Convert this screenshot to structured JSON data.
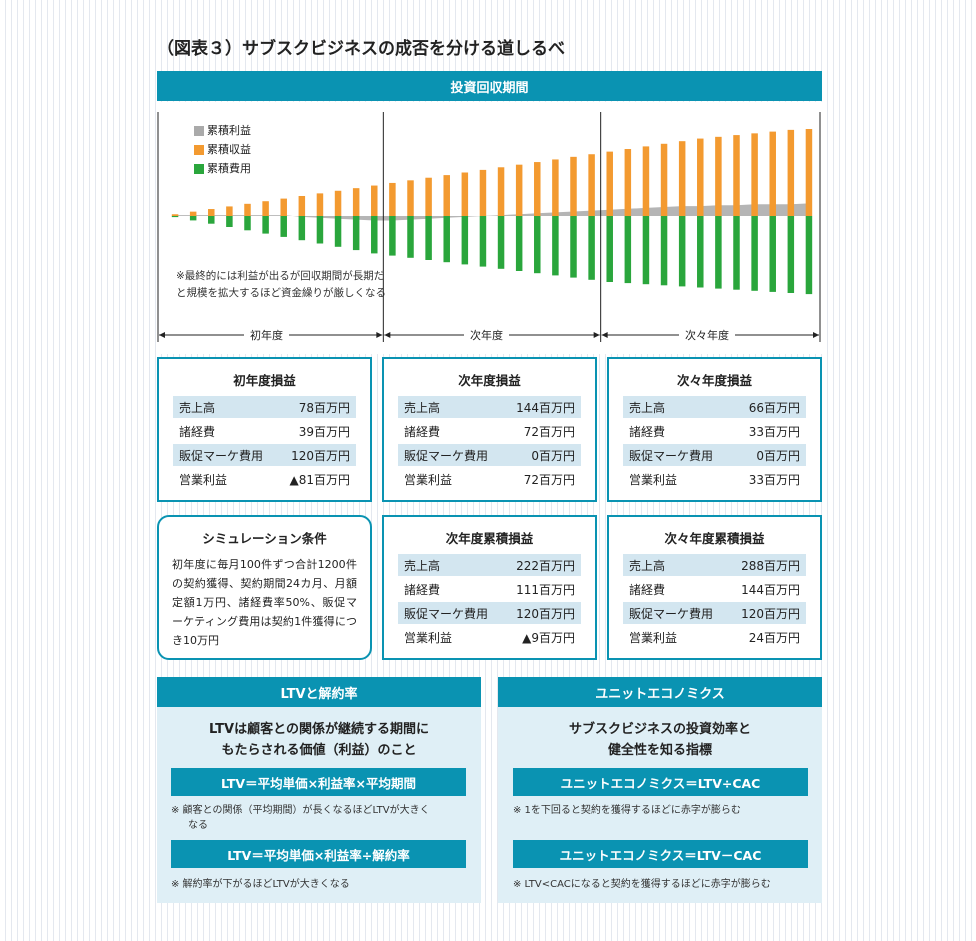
{
  "title": "（図表３）サブスクビジネスの成否を分ける道しるべ",
  "chart_header": "投資回収期間",
  "chart_data": {
    "type": "bar",
    "categories": [
      "1",
      "2",
      "3",
      "4",
      "5",
      "6",
      "7",
      "8",
      "9",
      "10",
      "11",
      "12",
      "13",
      "14",
      "15",
      "16",
      "17",
      "18",
      "19",
      "20",
      "21",
      "22",
      "23",
      "24",
      "25",
      "26",
      "27",
      "28",
      "29",
      "30",
      "31",
      "32",
      "33",
      "34",
      "35",
      "36"
    ],
    "series": [
      {
        "name": "累積収益",
        "values": [
          2,
          5,
          8,
          11,
          14,
          17,
          20,
          23,
          26,
          29,
          32,
          35,
          38,
          41,
          44,
          47,
          50,
          53,
          56,
          59,
          62,
          65,
          68,
          71,
          74,
          77,
          80,
          83,
          86,
          89,
          91,
          93,
          95,
          97,
          99,
          100
        ]
      },
      {
        "name": "累積費用",
        "values": [
          -1,
          -4,
          -7,
          -10,
          -13,
          -16,
          -19,
          -22,
          -25,
          -28,
          -31,
          -34,
          -36,
          -38,
          -40,
          -42,
          -44,
          -46,
          -48,
          -50,
          -52,
          -54,
          -56,
          -58,
          -60,
          -61,
          -62,
          -63,
          -64,
          -65,
          -66,
          -67,
          -68,
          -69,
          -70,
          -71
        ]
      },
      {
        "name": "累積利益",
        "values": [
          1,
          1,
          1,
          1,
          1,
          1,
          1,
          -1,
          -2,
          -3,
          -4,
          -5,
          -5,
          -4,
          -3,
          -2,
          -1,
          0,
          1,
          2,
          3,
          4,
          5,
          6,
          7,
          8,
          9,
          10,
          11,
          11,
          12,
          12,
          13,
          13,
          13,
          14
        ]
      }
    ],
    "legend": [
      "累積利益",
      "累積収益",
      "累積費用"
    ],
    "colors": {
      "累積利益": "#aaaaaa",
      "累積収益": "#f39a30",
      "累積費用": "#2aa63c"
    },
    "annotation": "※最終的には利益が出るが回収期間が長期だと規模を拡大するほど資金繰りが厳しくなる",
    "periods": [
      "初年度",
      "次年度",
      "次々年度"
    ]
  },
  "cards": [
    {
      "title": "初年度損益",
      "rows": [
        {
          "label": "売上高",
          "value": "78百万円"
        },
        {
          "label": "諸経費",
          "value": "39百万円"
        },
        {
          "label": "販促マーケ費用",
          "value": "120百万円"
        },
        {
          "label": "営業利益",
          "value": "▲81百万円"
        }
      ]
    },
    {
      "title": "次年度損益",
      "rows": [
        {
          "label": "売上高",
          "value": "144百万円"
        },
        {
          "label": "諸経費",
          "value": "72百万円"
        },
        {
          "label": "販促マーケ費用",
          "value": "0百万円"
        },
        {
          "label": "営業利益",
          "value": "72百万円"
        }
      ]
    },
    {
      "title": "次々年度損益",
      "rows": [
        {
          "label": "売上高",
          "value": "66百万円"
        },
        {
          "label": "諸経費",
          "value": "33百万円"
        },
        {
          "label": "販促マーケ費用",
          "value": "0百万円"
        },
        {
          "label": "営業利益",
          "value": "33百万円"
        }
      ]
    },
    {
      "title": "次年度累積損益",
      "rows": [
        {
          "label": "売上高",
          "value": "222百万円"
        },
        {
          "label": "諸経費",
          "value": "111百万円"
        },
        {
          "label": "販促マーケ費用",
          "value": "120百万円"
        },
        {
          "label": "営業利益",
          "value": "▲9百万円"
        }
      ]
    },
    {
      "title": "次々年度累積損益",
      "rows": [
        {
          "label": "売上高",
          "value": "288百万円"
        },
        {
          "label": "諸経費",
          "value": "144百万円"
        },
        {
          "label": "販促マーケ費用",
          "value": "120百万円"
        },
        {
          "label": "営業利益",
          "value": "24百万円"
        }
      ]
    }
  ],
  "simulation": {
    "title": "シミュレーション条件",
    "text": "初年度に毎月100件ずつ合計1200件の契約獲得、契約期間24カ月、月額定額1万円、諸経費率50%、販促マーケティング費用は契約1件獲得につき10万円"
  },
  "ltv": {
    "header": "LTVと解約率",
    "lead1": "LTVは顧客との関係が継続する期間に",
    "lead2": "もたらされる価値（利益）のこと",
    "formula1": "LTV＝平均単価×利益率×平均期間",
    "note1a": "※ 顧客との関係（平均期間）が長くなるほどLTVが大きく",
    "note1b": "なる",
    "formula2": "LTV＝平均単価×利益率÷解約率",
    "note2": "※ 解約率が下がるほどLTVが大きくなる"
  },
  "unit": {
    "header": "ユニットエコノミクス",
    "lead1": "サブスクビジネスの投資効率と",
    "lead2": "健全性を知る指標",
    "formula1": "ユニットエコノミクス＝LTV÷CAC",
    "note1": "※ 1を下回ると契約を獲得するほどに赤字が膨らむ",
    "formula2": "ユニットエコノミクス＝LTV－CAC",
    "note2": "※ LTV<CACになると契約を獲得するほどに赤字が膨らむ"
  }
}
